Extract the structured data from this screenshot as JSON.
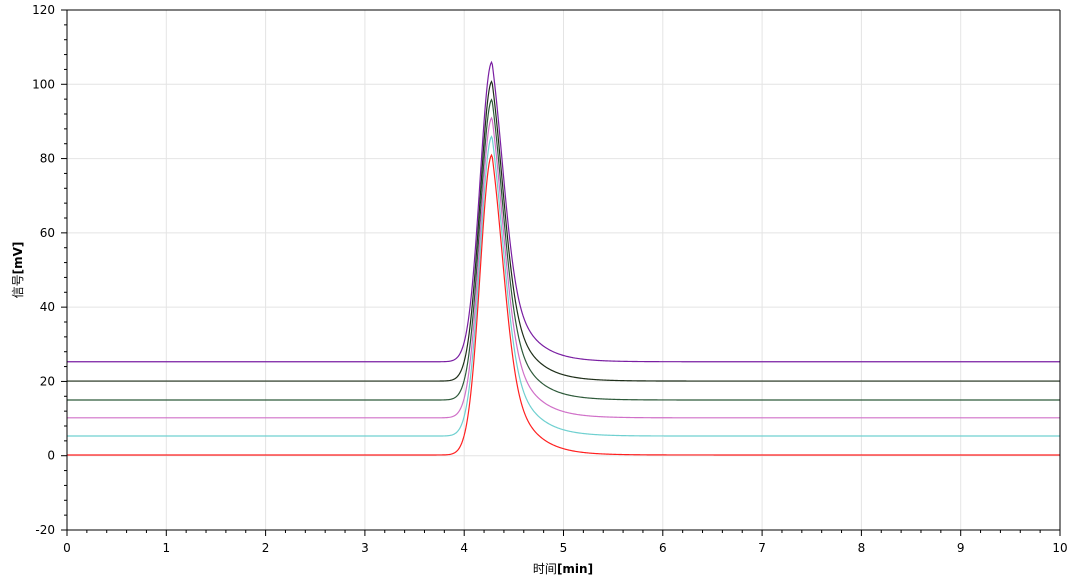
{
  "chart_data": {
    "type": "line",
    "title": "",
    "xlabel": {
      "text": "时间",
      "unit": "[min]"
    },
    "ylabel": {
      "text": "信号",
      "unit": "[mV]"
    },
    "xlim": [
      0,
      10
    ],
    "ylim": [
      -20,
      120
    ],
    "x_ticks": [
      0,
      1,
      2,
      3,
      4,
      5,
      6,
      7,
      8,
      9,
      10
    ],
    "y_ticks": [
      -20,
      0,
      20,
      40,
      60,
      80,
      100,
      120
    ],
    "grid": true,
    "legend": "none",
    "peak": {
      "center": 4.28,
      "sigma_left": 0.12,
      "tau_right": 0.22
    },
    "series": [
      {
        "color": "#7a1fa2",
        "baseline": 25.3,
        "peak_height": 80.7
      },
      {
        "color": "#1f2f1a",
        "baseline": 20.1,
        "peak_height": 80.7
      },
      {
        "color": "#2e5a3a",
        "baseline": 15.0,
        "peak_height": 80.9
      },
      {
        "color": "#d070c8",
        "baseline": 10.2,
        "peak_height": 80.8
      },
      {
        "color": "#6fd0d0",
        "baseline": 5.3,
        "peak_height": 80.7
      },
      {
        "color": "#ff2020",
        "baseline": 0.2,
        "peak_height": 80.8
      }
    ]
  }
}
